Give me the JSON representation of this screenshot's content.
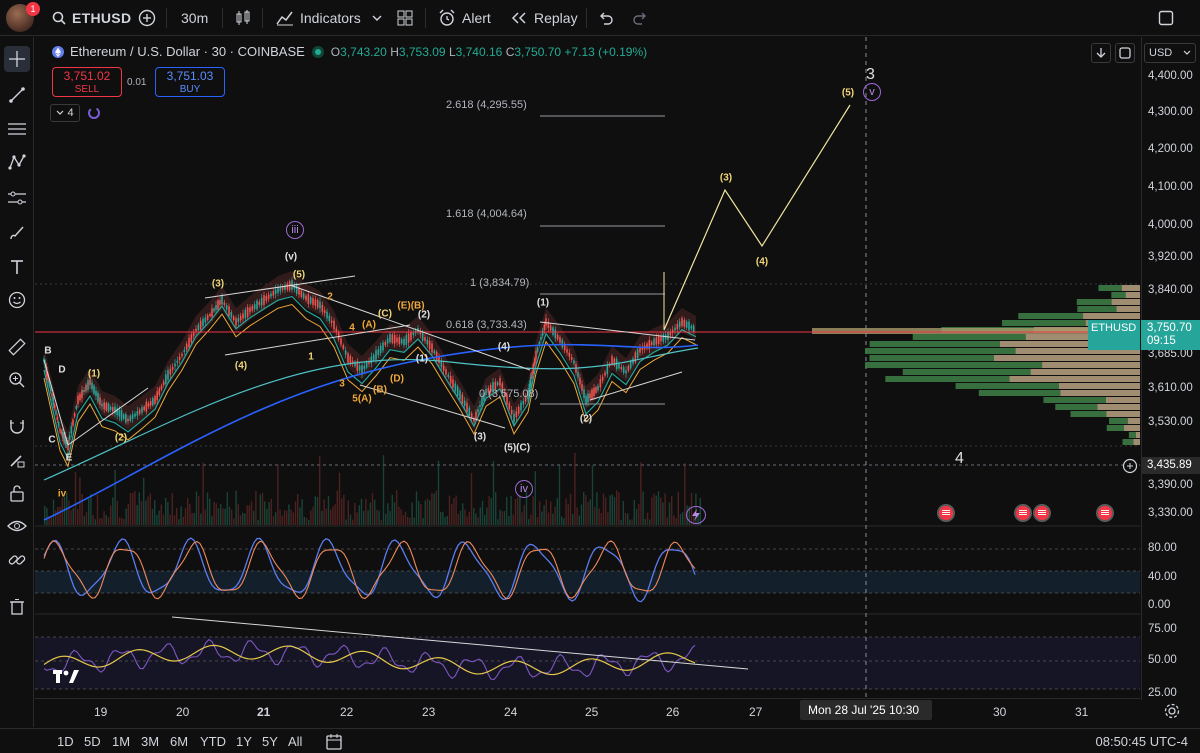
{
  "toolbar": {
    "notification_count": "1",
    "symbol": "ETHUSD",
    "interval": "30m",
    "indicators_label": "Indicators",
    "alert_label": "Alert",
    "replay_label": "Replay"
  },
  "legend": {
    "title": "Ethereum / U.S. Dollar · 30 · COINBASE",
    "open_label": "O",
    "open": "3,743.20",
    "high_label": "H",
    "high": "3,753.09",
    "low_label": "L",
    "low": "3,740.16",
    "close_label": "C",
    "close": "3,750.70",
    "change": "+7.13 (+0.19%)",
    "sell_price": "3,751.02",
    "sell_label": "SELL",
    "spread": "0.01",
    "buy_price": "3,751.03",
    "buy_label": "BUY",
    "indicator_count": "4"
  },
  "price_axis": {
    "currency": "USD",
    "labels": [
      "4,400.00",
      "4,300.00",
      "4,200.00",
      "4,100.00",
      "4,000.00",
      "3,920.00",
      "3,840.00",
      "3,760.00",
      "3,685.00",
      "3,610.00",
      "3,530.00",
      "3,435.89",
      "3,390.00",
      "3,330.00"
    ],
    "last_symbol": "ETHUSD",
    "last_price": "3,750.70",
    "countdown": "09:15",
    "crosshair_price": "3,435.89",
    "osc1_labels": [
      "80.00",
      "40.00",
      "0.00"
    ],
    "osc2_labels": [
      "75.00",
      "50.00",
      "25.00"
    ]
  },
  "fib_levels": [
    {
      "label": "2.618 (4,295.55)"
    },
    {
      "label": "1.618 (4,004.64)"
    },
    {
      "label": "1 (3,834.79)"
    },
    {
      "label": "0.618 (3,733.43)"
    },
    {
      "label": "0 (3,575.08)"
    }
  ],
  "waves": {
    "three": "3",
    "four": "4",
    "circ_iii": "iii",
    "circ_iv": "iv",
    "circ_v": "v",
    "iv_lower": "iv"
  },
  "time_axis": {
    "labels": [
      "19",
      "20",
      "21",
      "22",
      "23",
      "24",
      "25",
      "26",
      "27",
      "30",
      "31"
    ],
    "crosshair_time": "Mon 28 Jul '25   10:30"
  },
  "bottom": {
    "ranges": [
      "1D",
      "5D",
      "1M",
      "3M",
      "6M",
      "YTD",
      "1Y",
      "5Y",
      "All"
    ],
    "clock": "08:50:45 UTC-4"
  },
  "colors": {
    "background": "#0f0f0f",
    "up": "#26a69a",
    "down": "#ef5350",
    "price_line": "#f23645",
    "elliott_projection": "#f0e4a0",
    "accent_blue": "#2962ff"
  }
}
